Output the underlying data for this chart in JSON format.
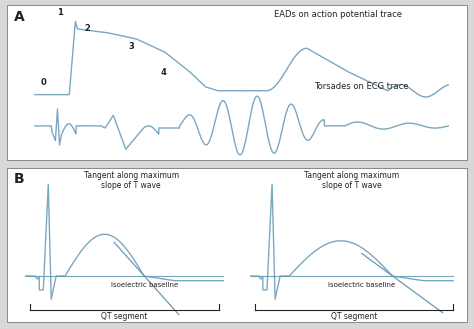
{
  "bg_color": "#d8d8d8",
  "panel_bg": "#ffffff",
  "line_color": "#7ba7c0",
  "line_color2": "#6a9ab5",
  "text_color": "#222222",
  "label_A": "A",
  "label_B": "B",
  "annotation_EADs": "EADs on action potential trace",
  "annotation_Torsades": "Torsades on ECG trace",
  "annotation_tangent1": "Tangent along maximum\nslope of T wave",
  "annotation_tangent2": "Tangent along maximum\nslope of T wave",
  "annotation_isoelectric1": "Isoelectric baseline",
  "annotation_isoelectric2": "Isoelectric baseline",
  "annotation_QT1": "QT segment",
  "annotation_QT2": "QT segment",
  "phase_labels": [
    "0",
    "1",
    "2",
    "3",
    "4"
  ]
}
